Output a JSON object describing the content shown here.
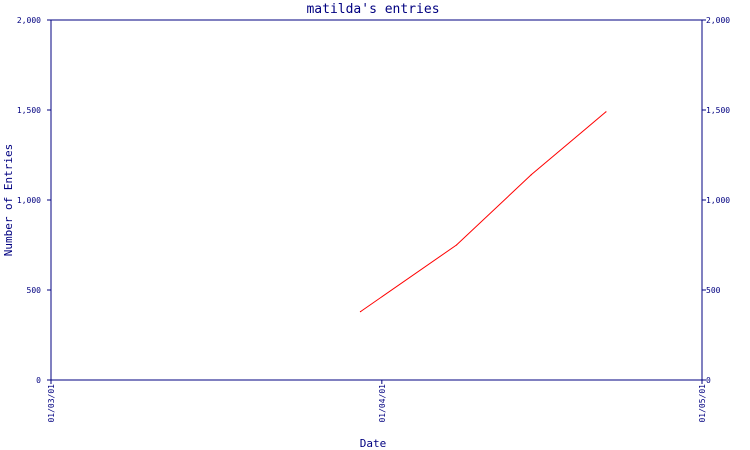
{
  "chart_data": {
    "type": "line",
    "title": "matilda's entries",
    "xlabel": "Date",
    "ylabel": "Number of Entries",
    "ylim": [
      0,
      2000
    ],
    "y_ticks": [
      {
        "value": 0,
        "label": "0"
      },
      {
        "value": 500,
        "label": "500"
      },
      {
        "value": 1000,
        "label": "1,000"
      },
      {
        "value": 1500,
        "label": "1,500"
      },
      {
        "value": 2000,
        "label": "2,000"
      }
    ],
    "x_ticks": [
      {
        "date": "2001-03-01",
        "label": "01/03/01"
      },
      {
        "date": "2001-04-01",
        "label": "01/04/01"
      },
      {
        "date": "2001-05-01",
        "label": "01/05/01"
      }
    ],
    "xlim": [
      "2001-03-01",
      "2001-05-01"
    ],
    "grid": false,
    "series": [
      {
        "color": "#ff0000",
        "points": [
          {
            "x": "2001-03-30",
            "y": 380
          },
          {
            "x": "2001-04-08",
            "y": 750
          },
          {
            "x": "2001-04-15",
            "y": 1140
          },
          {
            "x": "2001-04-22",
            "y": 1490
          }
        ]
      }
    ],
    "colors": {
      "axis": "#000080",
      "text": "#000080",
      "line": "#ff0000",
      "background": "#ffffff"
    }
  }
}
